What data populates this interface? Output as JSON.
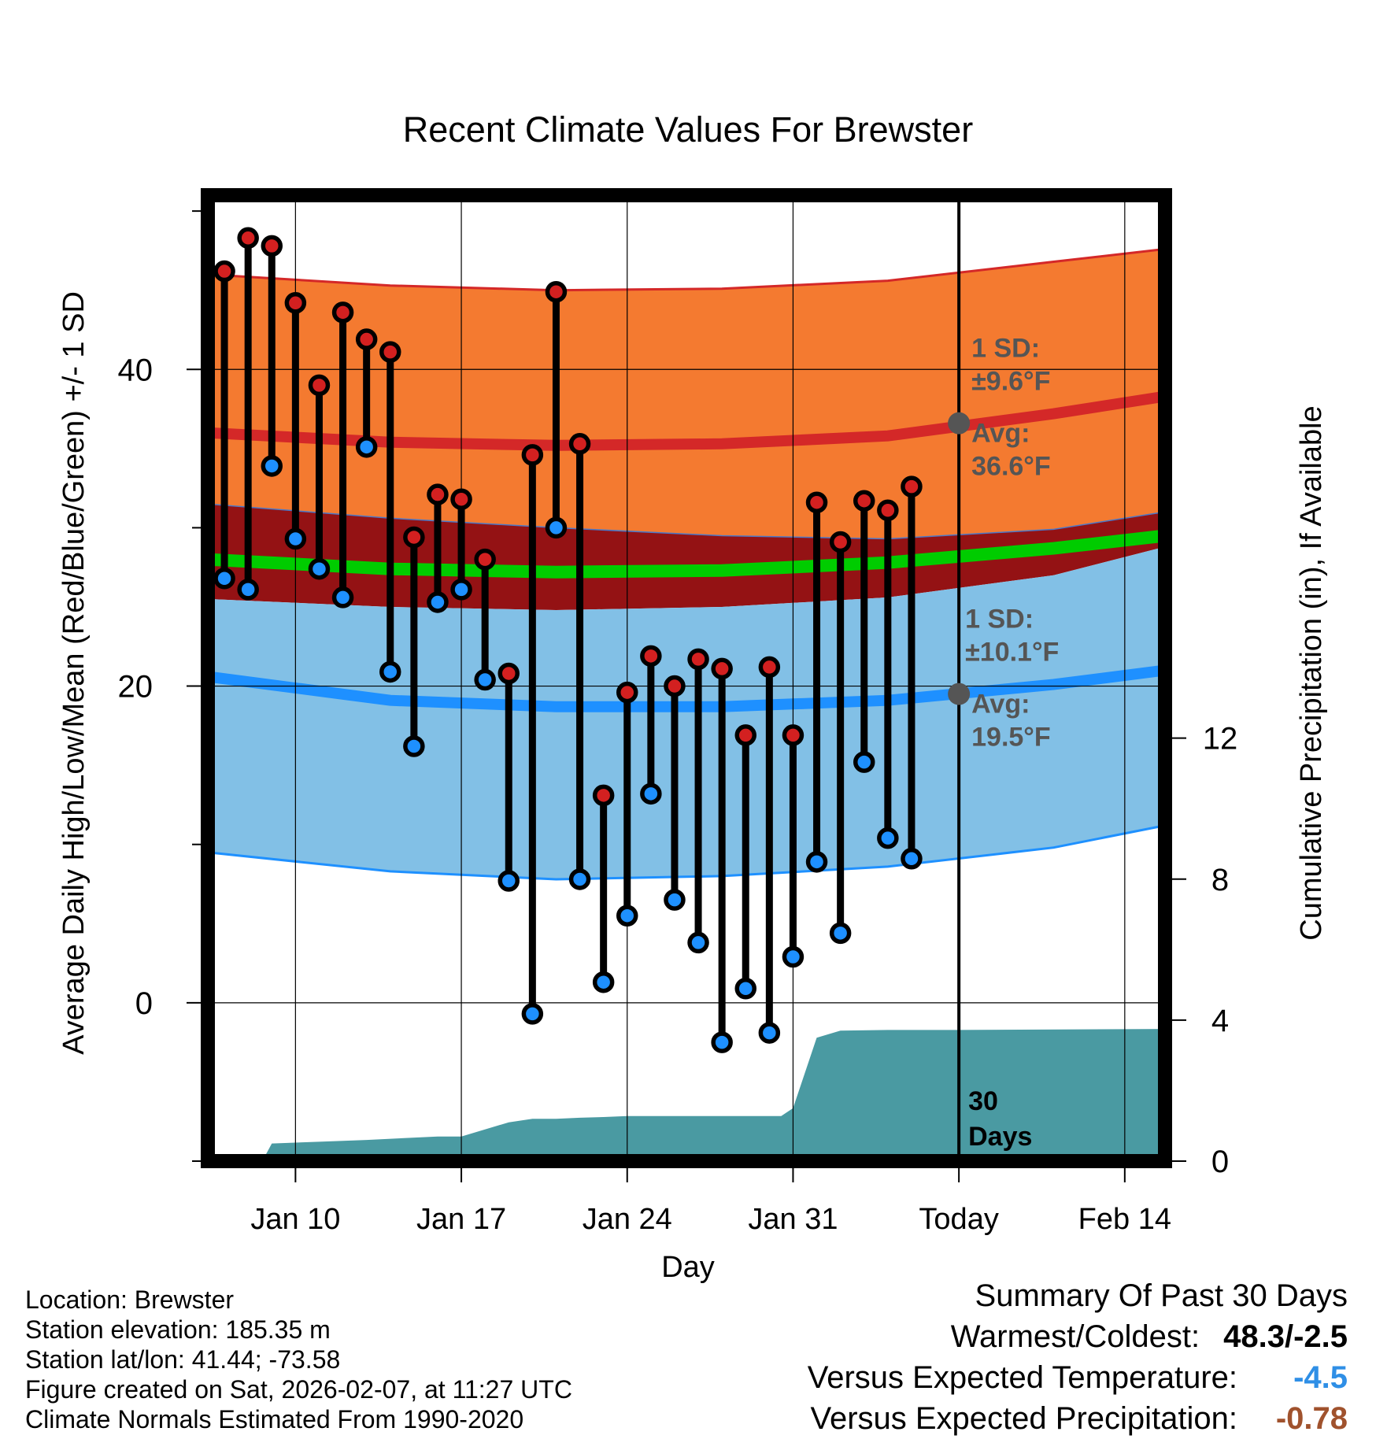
{
  "chart_data": {
    "type": "line",
    "title": "Recent Climate Values For Brewster",
    "xlabel": "Day",
    "ylabel": "Average Daily High/Low/Mean (Red/Blue/Green) +/- 1 SD",
    "y2label": "Cumulative Precipitation (in), If Available",
    "xlim": [
      -0.7,
      39.7
    ],
    "ylim": [
      -10,
      51
    ],
    "y2lim": [
      0,
      27.4
    ],
    "x_ticks": [
      3,
      10,
      17,
      24,
      31,
      38
    ],
    "x_tick_labels": [
      "Jan 10",
      "Jan 17",
      "Jan 24",
      "Jan 31",
      "Today",
      "Feb 14"
    ],
    "y_ticks": [
      0,
      20,
      40
    ],
    "y_tick_labels": [
      "0",
      "20",
      "40"
    ],
    "y_minor_ticks": [
      -10,
      10,
      30,
      50
    ],
    "y2_ticks": [
      0,
      4,
      8,
      12
    ],
    "y2_tick_labels": [
      "0",
      "4",
      "8",
      "12"
    ],
    "today_x": 31,
    "colors": {
      "high_band": "#f47a30",
      "high_line": "#d42828",
      "mean_band": "#941214",
      "mean_line": "#00cc00",
      "low_band": "#82c0e6",
      "low_line": "#1e90ff",
      "precip": "#4a9aa2",
      "high_dot": "#d32020",
      "low_dot": "#1e90ff",
      "annot": "#555555"
    },
    "normal_high": {
      "x": [
        -0.7,
        7,
        14,
        21,
        28,
        35,
        39.7
      ],
      "avg": [
        36.0,
        35.4,
        35.2,
        35.3,
        35.8,
        37.2,
        38.3
      ],
      "upper": [
        46.0,
        45.3,
        45.0,
        45.1,
        45.6,
        46.8,
        47.6
      ],
      "lower": [
        31.5,
        30.6,
        30.0,
        29.5,
        29.3,
        29.9,
        31.0
      ]
    },
    "normal_mean": {
      "x": [
        -0.7,
        7,
        14,
        21,
        28,
        35,
        39.7
      ],
      "avg": [
        28.0,
        27.4,
        27.2,
        27.3,
        27.8,
        28.7,
        29.5
      ],
      "upper": [
        31.5,
        30.6,
        30.0,
        29.5,
        29.3,
        29.9,
        31.0
      ],
      "lower": [
        25.5,
        25.0,
        24.8,
        25.0,
        25.6,
        27.0,
        28.8
      ]
    },
    "normal_low": {
      "x": [
        -0.7,
        7,
        14,
        21,
        28,
        35,
        39.7
      ],
      "avg": [
        20.6,
        19.1,
        18.7,
        18.7,
        19.1,
        20.1,
        21.0
      ],
      "upper": [
        25.5,
        25.0,
        24.8,
        25.0,
        25.6,
        27.0,
        28.8
      ],
      "lower": [
        9.5,
        8.3,
        7.8,
        8.0,
        8.6,
        9.8,
        11.2
      ]
    },
    "series": [
      {
        "name": "High",
        "x": [
          0,
          1,
          2,
          3,
          4,
          5,
          6,
          7,
          8,
          9,
          10,
          11,
          12,
          13,
          14,
          15,
          16,
          17,
          18,
          19,
          20,
          21,
          22,
          23,
          24,
          25,
          26,
          27,
          28,
          29
        ],
        "values": [
          46.2,
          48.3,
          47.8,
          44.2,
          39.0,
          43.6,
          41.9,
          41.1,
          29.4,
          32.1,
          31.8,
          28.0,
          20.8,
          34.6,
          44.9,
          35.3,
          13.1,
          19.6,
          21.9,
          20.0,
          21.7,
          21.1,
          16.9,
          21.2,
          16.9,
          31.6,
          29.1,
          31.7,
          31.1,
          32.6
        ]
      },
      {
        "name": "Low",
        "x": [
          0,
          1,
          2,
          3,
          4,
          5,
          6,
          7,
          8,
          9,
          10,
          11,
          12,
          13,
          14,
          15,
          16,
          17,
          18,
          19,
          20,
          21,
          22,
          23,
          24,
          25,
          26,
          27,
          28,
          29
        ],
        "values": [
          26.8,
          26.1,
          33.9,
          29.3,
          27.4,
          25.6,
          35.1,
          20.9,
          16.2,
          25.3,
          26.1,
          20.4,
          7.7,
          -0.7,
          30.0,
          7.8,
          1.3,
          5.5,
          13.2,
          6.5,
          3.8,
          -2.5,
          0.9,
          -1.9,
          2.9,
          8.9,
          4.4,
          15.2,
          10.4,
          9.1
        ]
      },
      {
        "name": "Cumulative Precipitation",
        "x": [
          -0.7,
          1.6,
          2,
          4,
          6,
          7.5,
          9,
          10,
          12,
          13,
          14,
          15,
          16,
          17,
          23.5,
          24,
          25,
          26,
          28,
          30,
          31,
          39.7
        ],
        "values": [
          0,
          0,
          0.5,
          0.55,
          0.6,
          0.65,
          0.7,
          0.7,
          1.1,
          1.2,
          1.2,
          1.23,
          1.25,
          1.28,
          1.28,
          1.5,
          3.5,
          3.7,
          3.72,
          3.72,
          3.72,
          3.75
        ]
      }
    ],
    "annotations": {
      "high_sd_label": "1 SD:",
      "high_sd_value": "±9.6°F",
      "high_avg_label": "Avg:",
      "high_avg_value": "36.6°F",
      "low_sd_label": "1 SD:",
      "low_sd_value": "±10.1°F",
      "low_avg_label": "Avg:",
      "low_avg_value": "19.5°F",
      "today_high_avg": 36.6,
      "today_low_avg": 19.5,
      "days_line1": "30",
      "days_line2": "Days"
    }
  },
  "footer": {
    "location": "Location: Brewster",
    "elevation": "Station elevation: 185.35 m",
    "latlon": "Station lat/lon: 41.44; -73.58",
    "created": "Figure created on Sat, 2026-02-07, at 11:27 UTC",
    "normals": "Climate Normals Estimated From 1990-2020"
  },
  "summary": {
    "title": "Summary Of Past 30 Days",
    "warmest_label": "Warmest/Coldest:",
    "warmest_value": "48.3/-2.5",
    "temp_label": "Versus Expected Temperature:",
    "temp_value": "-4.5",
    "temp_color": "#2f8fe6",
    "precip_label": "Versus Expected Precipitation:",
    "precip_value": "-0.78",
    "precip_color": "#a0522d"
  }
}
